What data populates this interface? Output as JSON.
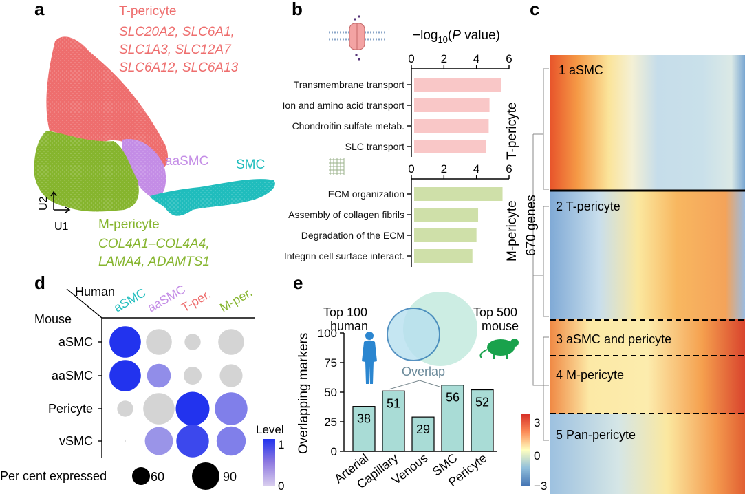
{
  "colors": {
    "t_pericyte": "#ee6e6e",
    "aasmc": "#c48de6",
    "smc": "#20bdbd",
    "m_pericyte": "#86b52e",
    "bar_t": "#f9c7c7",
    "bar_m": "#cfe0a9",
    "bar_e": "#a9dcd6",
    "dot_grey": "#d4d4d4",
    "level_low": "#cdbde6",
    "level_high": "#2233ee"
  },
  "panel_a": {
    "label": "a",
    "t_pericyte": {
      "title": "T-pericyte",
      "genes": [
        "SLC20A2, SLC6A1,",
        "SLC1A3, SLC12A7",
        "SLC6A12, SLC6A13"
      ]
    },
    "aasmc_label": "aaSMC",
    "smc_label": "SMC",
    "m_pericyte": {
      "title": "M-pericyte",
      "genes": [
        "COL4A1–COL4A4,",
        "LAMA4, ADAMTS1"
      ]
    },
    "axis_u1": "U1",
    "axis_u2": "U2"
  },
  "panel_b": {
    "label": "b",
    "axis_title": "−log10(P value)",
    "ticks": [
      "0",
      "2",
      "4",
      "6"
    ],
    "t_group": "T-pericyte",
    "m_group": "M-pericyte"
  },
  "panel_c": {
    "label": "c",
    "genes_label": "670 genes",
    "clusters": [
      "1 aSMC",
      "2 T-pericyte",
      "3 aSMC and pericyte",
      "4 M-pericyte",
      "5 Pan-pericyte"
    ],
    "colorbar_ticks": [
      "3",
      "0",
      "−3"
    ]
  },
  "panel_d": {
    "label": "d",
    "human_label": "Human",
    "mouse_label": "Mouse",
    "columns": [
      "aSMC",
      "aaSMC",
      "T-per.",
      "M-per."
    ],
    "rows": [
      "aSMC",
      "aaSMC",
      "Pericyte",
      "vSMC"
    ],
    "legend_title": "Level",
    "legend_ticks": [
      "1",
      "0"
    ],
    "size_legend_label": "Per cent expressed",
    "size_legend_values": [
      "60",
      "90"
    ]
  },
  "panel_e": {
    "label": "e",
    "venn_human": "Top 100\nhuman",
    "venn_mouse": "Top 500\nmouse",
    "overlap_label": "Overlap",
    "ylabel": "Overlapping markers",
    "yticks": [
      "0",
      "25",
      "50",
      "75",
      "100"
    ]
  },
  "chart_data": [
    {
      "type": "bar",
      "orientation": "horizontal",
      "title": "−log10(P value)",
      "group": "T-pericyte",
      "categories": [
        "Transmembrane transport",
        "Ion and amino acid transport",
        "Chondroitin sulfate metab.",
        "SLC transport"
      ],
      "values": [
        5.5,
        4.8,
        4.75,
        4.6
      ],
      "xlim": [
        0,
        6
      ]
    },
    {
      "type": "bar",
      "orientation": "horizontal",
      "title": "−log10(P value)",
      "group": "M-pericyte",
      "categories": [
        "ECM organization",
        "Assembly of collagen fibrils",
        "Degradation of the ECM",
        "Integrin cell surface interact."
      ],
      "values": [
        5.6,
        4.1,
        4.0,
        3.75
      ],
      "xlim": [
        0,
        6
      ]
    },
    {
      "type": "scatter",
      "subtype": "dot-plot",
      "columns": [
        "aSMC",
        "aaSMC",
        "T-per.",
        "M-per."
      ],
      "rows": [
        "aSMC",
        "aaSMC",
        "Pericyte",
        "vSMC"
      ],
      "percent_expressed": [
        [
          88,
          78,
          58,
          78
        ],
        [
          88,
          74,
          62,
          72
        ],
        [
          58,
          88,
          92,
          90
        ],
        [
          8,
          82,
          90,
          84
        ]
      ],
      "level": [
        [
          1.0,
          0,
          0,
          0
        ],
        [
          1.0,
          0.35,
          0,
          0
        ],
        [
          0,
          0,
          1.0,
          0.45
        ],
        [
          0,
          0.3,
          0.85,
          0.45
        ]
      ],
      "level_range": [
        0,
        1
      ]
    },
    {
      "type": "bar",
      "categories": [
        "Arterial",
        "Capillary",
        "Venous",
        "SMC",
        "Pericyte"
      ],
      "values": [
        38,
        51,
        29,
        56,
        52
      ],
      "ylabel": "Overlapping markers",
      "ylim": [
        0,
        100
      ]
    },
    {
      "type": "heatmap",
      "row_count_label": "670 genes",
      "clusters": [
        "1 aSMC",
        "2 T-pericyte",
        "3 aSMC and pericyte",
        "4 M-pericyte",
        "5 Pan-pericyte"
      ],
      "color_range": [
        -3,
        3
      ]
    }
  ]
}
